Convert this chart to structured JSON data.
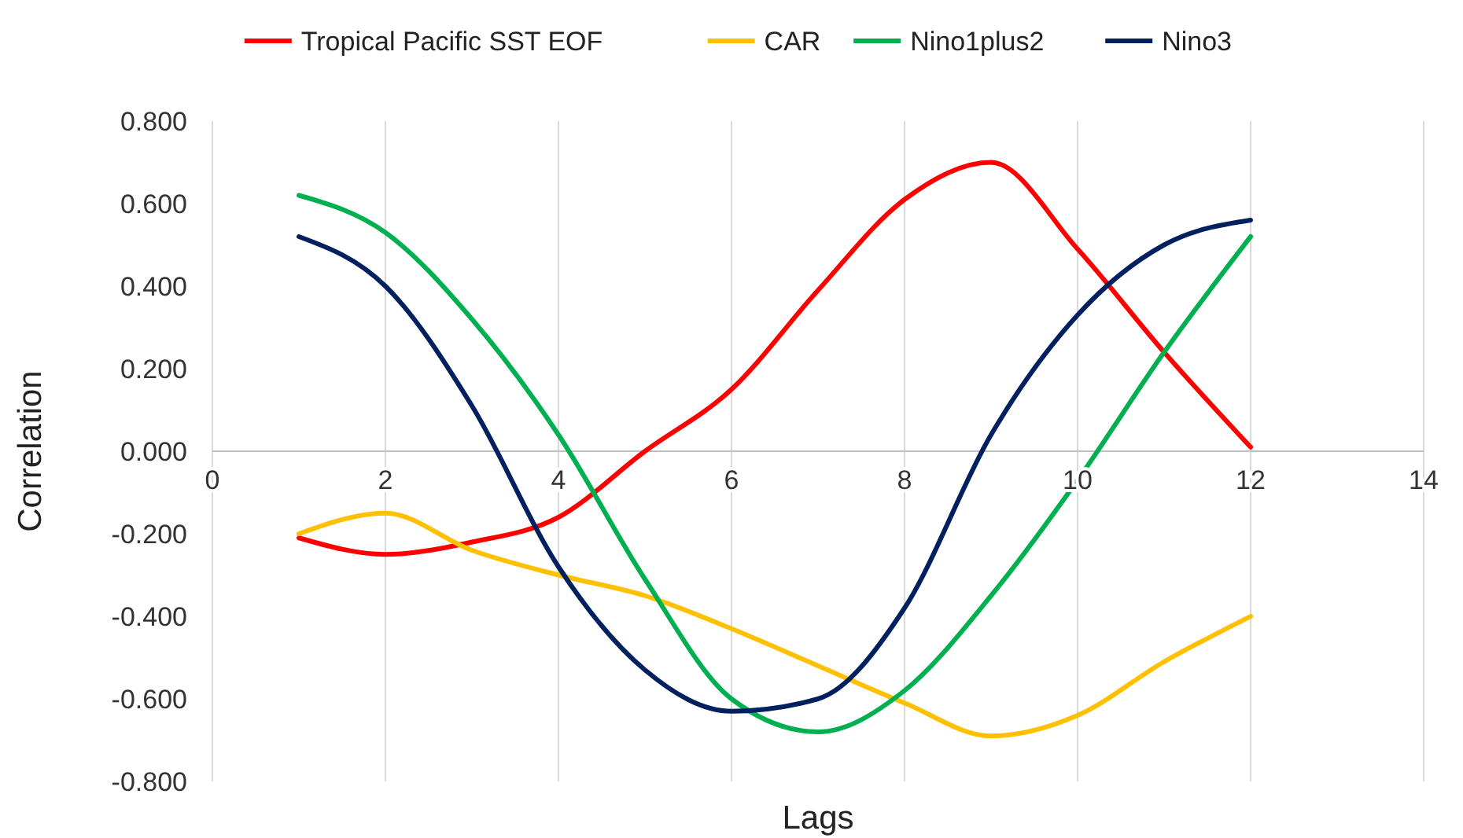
{
  "chart_data": {
    "type": "line",
    "xlabel": "Lags",
    "ylabel": "Correlation",
    "x": [
      1,
      2,
      3,
      4,
      5,
      6,
      7,
      8,
      9,
      10,
      11,
      12
    ],
    "xlim": [
      0,
      14
    ],
    "xticks": [
      0,
      2,
      4,
      6,
      8,
      10,
      12,
      14
    ],
    "ylim": [
      -0.8,
      0.8
    ],
    "yticks": [
      {
        "value": -0.8,
        "label": "-0.800"
      },
      {
        "value": -0.6,
        "label": "-0.600"
      },
      {
        "value": -0.4,
        "label": "-0.400"
      },
      {
        "value": -0.2,
        "label": "-0.200"
      },
      {
        "value": 0,
        "label": "0.000"
      },
      {
        "value": 0.2,
        "label": "0.200"
      },
      {
        "value": 0.4,
        "label": "0.400"
      },
      {
        "value": 0.6,
        "label": "0.600"
      },
      {
        "value": 0.8,
        "label": "0.800"
      }
    ],
    "grid": "x",
    "legend": "top",
    "marker": "none",
    "line_style": "solid",
    "series": [
      {
        "name": "Tropical Pacific SST EOF",
        "color": "#ff0000",
        "values": [
          -0.21,
          -0.25,
          -0.22,
          -0.16,
          0.0,
          0.15,
          0.39,
          0.61,
          0.7,
          0.49,
          0.24,
          0.01
        ]
      },
      {
        "name": "CAR",
        "color": "#ffc000",
        "values": [
          -0.2,
          -0.15,
          -0.24,
          -0.3,
          -0.35,
          -0.43,
          -0.52,
          -0.61,
          -0.69,
          -0.64,
          -0.51,
          -0.4
        ]
      },
      {
        "name": "Nino1plus2",
        "color": "#00b050",
        "values": [
          0.62,
          0.53,
          0.32,
          0.04,
          -0.31,
          -0.6,
          -0.68,
          -0.58,
          -0.35,
          -0.07,
          0.24,
          0.52
        ]
      },
      {
        "name": "Nino3",
        "color": "#002060",
        "values": [
          0.52,
          0.4,
          0.11,
          -0.28,
          -0.53,
          -0.63,
          -0.6,
          -0.38,
          0.04,
          0.33,
          0.5,
          0.56
        ]
      }
    ]
  }
}
